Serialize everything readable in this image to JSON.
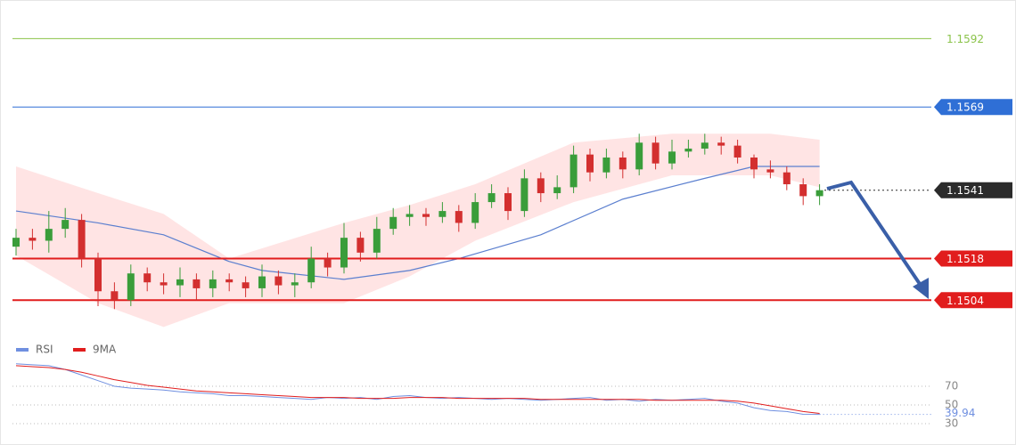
{
  "chart_data": {
    "type": "candlestick",
    "open": [
      1.1522,
      1.1525,
      1.1524,
      1.1528,
      1.1531,
      1.1518,
      1.1507,
      1.1504,
      1.1513,
      1.151,
      1.1509,
      1.1511,
      1.1508,
      1.1511,
      1.151,
      1.1508,
      1.1512,
      1.1509,
      1.151,
      1.1518,
      1.1515,
      1.1525,
      1.152,
      1.1528,
      1.1532,
      1.1533,
      1.1532,
      1.1534,
      1.153,
      1.1537,
      1.154,
      1.1534,
      1.1545,
      1.154,
      1.1542,
      1.1553,
      1.1547,
      1.1552,
      1.1548,
      1.1557,
      1.155,
      1.1554,
      1.1555,
      1.1557,
      1.1556,
      1.1552,
      1.1548,
      1.1547,
      1.1543,
      1.1539
    ],
    "high": [
      1.1528,
      1.1528,
      1.1534,
      1.1535,
      1.1533,
      1.152,
      1.151,
      1.1516,
      1.1515,
      1.1513,
      1.1515,
      1.1513,
      1.1514,
      1.1513,
      1.1512,
      1.1516,
      1.1514,
      1.1513,
      1.1522,
      1.152,
      1.153,
      1.1527,
      1.1532,
      1.1535,
      1.1536,
      1.1535,
      1.1537,
      1.1536,
      1.154,
      1.1543,
      1.1542,
      1.1548,
      1.1547,
      1.1546,
      1.1556,
      1.1555,
      1.1555,
      1.1554,
      1.156,
      1.1559,
      1.1558,
      1.1558,
      1.156,
      1.1559,
      1.1558,
      1.1553,
      1.1551,
      1.1549,
      1.1545,
      1.1543
    ],
    "low": [
      1.1519,
      1.1521,
      1.152,
      1.1525,
      1.1515,
      1.1502,
      1.1501,
      1.1502,
      1.1507,
      1.1506,
      1.1505,
      1.1504,
      1.1505,
      1.1507,
      1.1505,
      1.1505,
      1.1506,
      1.1505,
      1.1508,
      1.1512,
      1.1513,
      1.1517,
      1.1518,
      1.1526,
      1.1529,
      1.1529,
      1.153,
      1.1527,
      1.1528,
      1.1535,
      1.1531,
      1.1532,
      1.1537,
      1.1538,
      1.154,
      1.1544,
      1.1545,
      1.1545,
      1.1546,
      1.1548,
      1.1548,
      1.1552,
      1.1553,
      1.1553,
      1.155,
      1.1545,
      1.1545,
      1.1541,
      1.1536,
      1.1536
    ],
    "close": [
      1.1525,
      1.1524,
      1.1528,
      1.1531,
      1.1518,
      1.1507,
      1.1504,
      1.1513,
      1.151,
      1.1509,
      1.1511,
      1.1508,
      1.1511,
      1.151,
      1.1508,
      1.1512,
      1.1509,
      1.151,
      1.1518,
      1.1515,
      1.1525,
      1.152,
      1.1528,
      1.1532,
      1.1533,
      1.1532,
      1.1534,
      1.153,
      1.1537,
      1.154,
      1.1534,
      1.1545,
      1.154,
      1.1542,
      1.1553,
      1.1547,
      1.1552,
      1.1548,
      1.1557,
      1.155,
      1.1554,
      1.1555,
      1.1557,
      1.1556,
      1.1552,
      1.1548,
      1.1547,
      1.1543,
      1.1539,
      1.1541
    ],
    "up_color": "#3a9d3a",
    "down_color": "#d32f2f",
    "ylim": [
      1.1493,
      1.1605
    ],
    "moving_average": {
      "color": "#5b7fcf",
      "x": [
        0,
        5,
        9,
        13,
        15,
        20,
        24,
        27,
        32,
        37,
        42,
        45,
        49
      ],
      "values": [
        1.1534,
        1.153,
        1.1526,
        1.1517,
        1.1514,
        1.1511,
        1.1514,
        1.1518,
        1.1526,
        1.1538,
        1.1545,
        1.1549,
        1.1549
      ]
    },
    "band": {
      "color": "#ffb3b3",
      "x": [
        0,
        5,
        9,
        13,
        20,
        24,
        28,
        34,
        40,
        46,
        49
      ],
      "upper": [
        1.1549,
        1.154,
        1.1533,
        1.1518,
        1.153,
        1.1536,
        1.1543,
        1.1557,
        1.156,
        1.156,
        1.1558
      ],
      "lower": [
        1.1519,
        1.1503,
        1.1495,
        1.1503,
        1.1503,
        1.1512,
        1.1524,
        1.1537,
        1.1546,
        1.1546,
        1.1542
      ]
    },
    "levels": [
      {
        "value": 1.1592,
        "color": "#8bc34a",
        "boxed": false
      },
      {
        "value": 1.1569,
        "color": "#2f6fd6",
        "boxed": true
      },
      {
        "value": 1.1541,
        "color": "#2b2b2b",
        "boxed": true,
        "dotted": true
      },
      {
        "value": 1.1518,
        "color": "#e11d1d",
        "boxed": true
      },
      {
        "value": 1.1504,
        "color": "#e11d1d",
        "boxed": true
      }
    ],
    "rsi_panel": {
      "ylim": [
        10,
        100
      ],
      "yticks": [
        70,
        50,
        30
      ],
      "series": [
        {
          "name": "RSI",
          "color": "#6f8fe0",
          "values": [
            94,
            93,
            92,
            88,
            82,
            76,
            70,
            68,
            67,
            66,
            64,
            63,
            62,
            60,
            60,
            59,
            58,
            57,
            56,
            58,
            57,
            58,
            56,
            59,
            60,
            58,
            57,
            58,
            57,
            56,
            57,
            56,
            55,
            56,
            57,
            58,
            55,
            56,
            54,
            56,
            55,
            56,
            57,
            54,
            52,
            47,
            44,
            43,
            40,
            39.94
          ]
        },
        {
          "name": "9MA",
          "color": "#e11d1d",
          "values": [
            92,
            91,
            90,
            88,
            85,
            81,
            77,
            74,
            71,
            69,
            67,
            65,
            64,
            63,
            62,
            61,
            60,
            59,
            58,
            58,
            58,
            57,
            57,
            57,
            58,
            58,
            58,
            57,
            57,
            57,
            57,
            57,
            56,
            56,
            56,
            56,
            56,
            56,
            56,
            55,
            55,
            55,
            55,
            55,
            54,
            52,
            49,
            46,
            43,
            41
          ]
        }
      ]
    }
  }
}
